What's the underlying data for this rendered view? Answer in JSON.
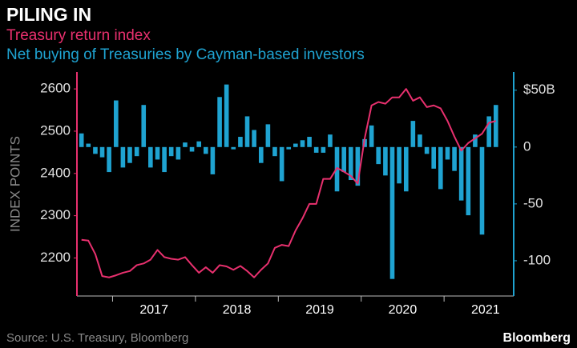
{
  "chart_data": {
    "type": "bar",
    "title": "PILING IN",
    "source": "Source: U.S. Treasury, Bloomberg",
    "brand": "Bloomberg",
    "y_label": "INDEX POINTS",
    "x": [
      2016.625,
      2016.708,
      2016.792,
      2016.875,
      2016.958,
      2017.042,
      2017.125,
      2017.208,
      2017.292,
      2017.375,
      2017.458,
      2017.542,
      2017.625,
      2017.708,
      2017.792,
      2017.875,
      2017.958,
      2018.042,
      2018.125,
      2018.208,
      2018.292,
      2018.375,
      2018.458,
      2018.542,
      2018.625,
      2018.708,
      2018.792,
      2018.875,
      2018.958,
      2019.042,
      2019.125,
      2019.208,
      2019.292,
      2019.375,
      2019.458,
      2019.542,
      2019.625,
      2019.708,
      2019.792,
      2019.875,
      2019.958,
      2020.042,
      2020.125,
      2020.208,
      2020.292,
      2020.375,
      2020.458,
      2020.542,
      2020.625,
      2020.708,
      2020.792,
      2020.875,
      2020.958,
      2021.042,
      2021.125,
      2021.208,
      2021.292,
      2021.375,
      2021.458,
      2021.542,
      2021.625
    ],
    "series": [
      {
        "name": "Net buying of Treasuries by Cayman-based investors",
        "type": "bar",
        "axis": "y2",
        "color": "#1fa3d1",
        "values": [
          12,
          3,
          -6,
          -9,
          -22,
          41,
          -18,
          -14,
          -8,
          37,
          -18,
          -11,
          -22,
          -8,
          -11,
          4,
          -4,
          5,
          -6,
          -24,
          44,
          55,
          -2,
          9,
          27,
          15,
          -14,
          20,
          -8,
          -30,
          -2,
          3,
          6,
          9,
          -5,
          -5,
          11,
          -39,
          -22,
          -29,
          -34,
          7,
          19,
          -15,
          -25,
          -116,
          -32,
          -39,
          23,
          11,
          -6,
          -19,
          -37,
          -11,
          -21,
          -47,
          -60,
          11,
          -77,
          27,
          37
        ]
      },
      {
        "name": "Treasury return index",
        "type": "line",
        "axis": "y",
        "color": "#e8306e",
        "values": [
          2243,
          2241,
          2209,
          2157,
          2154,
          2159,
          2165,
          2169,
          2183,
          2187,
          2196,
          2219,
          2202,
          2198,
          2196,
          2202,
          2183,
          2165,
          2178,
          2165,
          2183,
          2180,
          2172,
          2181,
          2169,
          2154,
          2172,
          2187,
          2224,
          2231,
          2228,
          2265,
          2294,
          2328,
          2328,
          2387,
          2387,
          2413,
          2404,
          2394,
          2376,
          2483,
          2561,
          2569,
          2565,
          2580,
          2580,
          2600,
          2572,
          2580,
          2557,
          2561,
          2554,
          2524,
          2487,
          2454,
          2472,
          2483,
          2494,
          2520,
          2524
        ]
      }
    ],
    "xlim": [
      2016.57,
      2021.84
    ],
    "xticks": [
      2017,
      2018,
      2019,
      2020,
      2021
    ],
    "ylim": [
      2110,
      2640
    ],
    "yticks": [
      2200,
      2300,
      2400,
      2500,
      2600
    ],
    "y2lim": [
      -131,
      66
    ],
    "y2ticks": [
      {
        "value": 50,
        "label": "$50B"
      },
      0,
      -50,
      -100
    ],
    "grid": false
  }
}
